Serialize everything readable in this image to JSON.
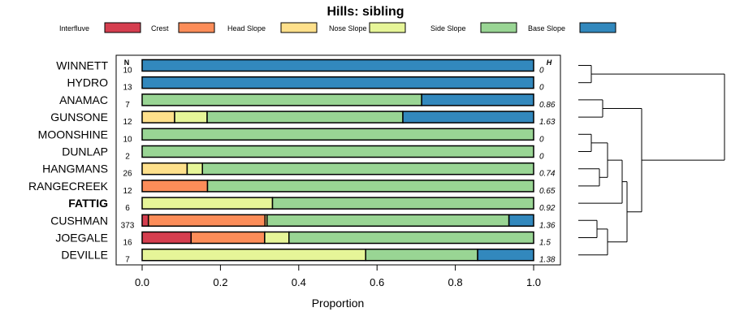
{
  "chart_data": {
    "type": "bar",
    "orientation": "horizontal",
    "stacked": true,
    "title": "Hills: sibling",
    "xlabel": "Proportion",
    "xlim": [
      0,
      1
    ],
    "x_ticks": [
      "0.0",
      "0.2",
      "0.4",
      "0.6",
      "0.8",
      "1.0"
    ],
    "x_tick_values": [
      0,
      0.2,
      0.4,
      0.6,
      0.8,
      1.0
    ],
    "n_header": "N",
    "h_header": "H",
    "legend": [
      {
        "name": "Interfluve",
        "color": "#D53E4F"
      },
      {
        "name": "Crest",
        "color": "#FC8D59"
      },
      {
        "name": "Head Slope",
        "color": "#FEE08B"
      },
      {
        "name": "Nose Slope",
        "color": "#E6F598"
      },
      {
        "name": "Side Slope",
        "color": "#99D594"
      },
      {
        "name": "Base Slope",
        "color": "#3288BD"
      }
    ],
    "categories": [
      "WINNETT",
      "HYDRO",
      "ANAMAC",
      "GUNSONE",
      "MOONSHINE",
      "DUNLAP",
      "HANGMANS",
      "RANGECREEK",
      "FATTIG",
      "CUSHMAN",
      "JOEGALE",
      "DEVILLE"
    ],
    "highlight": "FATTIG",
    "n": [
      "10",
      "13",
      "7",
      "12",
      "10",
      "2",
      "26",
      "12",
      "6",
      "373",
      "16",
      "7"
    ],
    "h": [
      "0",
      "0",
      "0.86",
      "1.63",
      "0",
      "0",
      "0.74",
      "0.65",
      "0.92",
      "1.36",
      "1.5",
      "1.38"
    ],
    "series": [
      {
        "name": "Interfluve",
        "values": [
          0,
          0,
          0,
          0,
          0,
          0,
          0,
          0,
          0,
          0.016,
          0.125,
          0
        ]
      },
      {
        "name": "Crest",
        "values": [
          0,
          0,
          0,
          0,
          0,
          0,
          0,
          0.167,
          0,
          0.298,
          0.188,
          0
        ]
      },
      {
        "name": "Head Slope",
        "values": [
          0,
          0,
          0,
          0.083,
          0,
          0,
          0.115,
          0,
          0,
          0.005,
          0,
          0
        ]
      },
      {
        "name": "Nose Slope",
        "values": [
          0,
          0,
          0,
          0.083,
          0,
          0,
          0.039,
          0,
          0.333,
          0,
          0.062,
          0.571
        ]
      },
      {
        "name": "Side Slope",
        "values": [
          0,
          0,
          0.714,
          0.5,
          1.0,
          1.0,
          0.846,
          0.833,
          0.667,
          0.618,
          0.625,
          0.286
        ]
      },
      {
        "name": "Base Slope",
        "values": [
          1.0,
          1.0,
          0.286,
          0.334,
          0,
          0,
          0,
          0,
          0,
          0.063,
          0,
          0.143
        ]
      }
    ]
  }
}
